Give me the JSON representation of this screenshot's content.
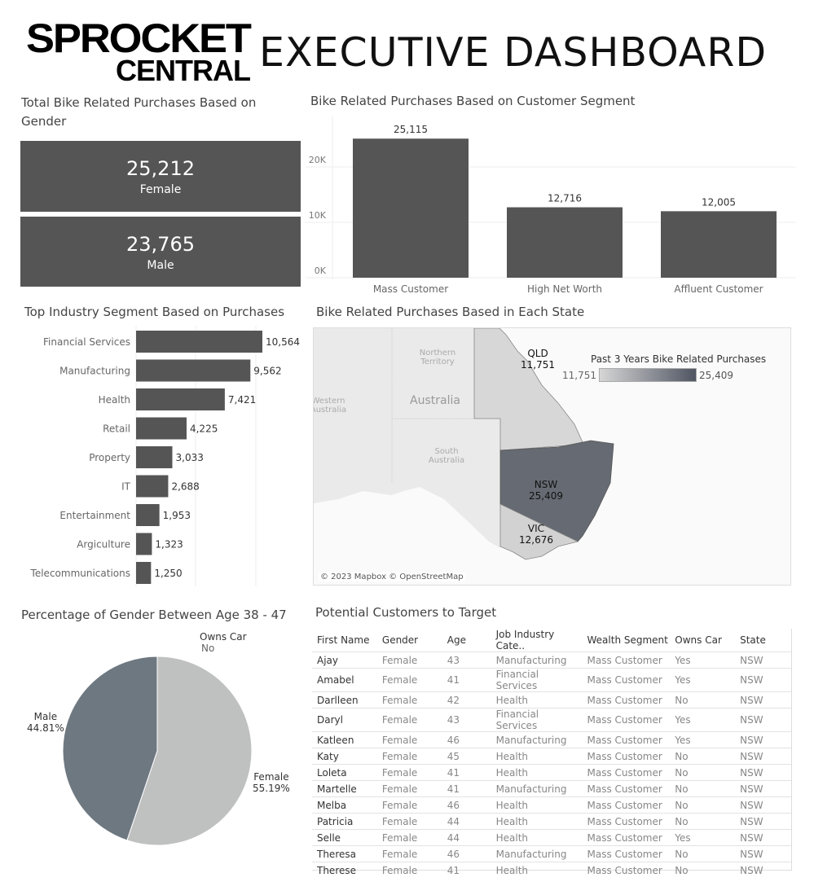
{
  "header": {
    "logo_line1": "SPROCKET",
    "logo_line2": "CENTRAL",
    "title": "EXECUTIVE DASHBOARD"
  },
  "gender_kpi": {
    "title": "Total Bike Related Purchases Based on Gender",
    "items": [
      {
        "value": "25,212",
        "label": "Female"
      },
      {
        "value": "23,765",
        "label": "Male"
      }
    ],
    "color": "#555555"
  },
  "chart_data": [
    {
      "type": "bar",
      "title": "Bike Related Purchases Based on Customer Segment",
      "categories": [
        "Mass Customer",
        "High Net Worth",
        "Affluent Customer"
      ],
      "values": [
        25115,
        12716,
        12005
      ],
      "value_labels": [
        "25,115",
        "12,716",
        "12,005"
      ],
      "yticks": [
        "0K",
        "10K",
        "20K"
      ],
      "ylim": [
        0,
        29000
      ],
      "color": "#555555",
      "grid": true
    },
    {
      "type": "bar",
      "orientation": "horizontal",
      "title": "Top Industry Segment Based on Purchases",
      "categories": [
        "Financial Services",
        "Manufacturing",
        "Health",
        "Retail",
        "Property",
        "IT",
        "Entertainment",
        "Argiculture",
        "Telecommunications"
      ],
      "values": [
        10564,
        9562,
        7421,
        4225,
        3033,
        2688,
        1953,
        1323,
        1250
      ],
      "value_labels": [
        "10,564",
        "9,562",
        "7,421",
        "4,225",
        "3,033",
        "2,688",
        "1,953",
        "1,323",
        "1,250"
      ],
      "color": "#555555"
    },
    {
      "type": "pie",
      "title": "Percentage of Gender Between Age 38 - 47",
      "legend_title": "Owns Car",
      "legend_value": "No",
      "slices": [
        {
          "label": "Female",
          "value": 55.19,
          "text": "55.19%",
          "color": "#bfc0c0"
        },
        {
          "label": "Male",
          "value": 44.81,
          "text": "44.81%",
          "color": "#6e7880"
        }
      ]
    }
  ],
  "map": {
    "title": "Bike Related Purchases Based in Each State",
    "legend_title": "Past 3 Years Bike Related Purchases",
    "legend_min": "11,751",
    "legend_max": "25,409",
    "color_low": "#d6d6d6",
    "color_high": "#4f5562",
    "attribution": "© 2023 Mapbox © OpenStreetMap",
    "basemap_labels": {
      "nt": "Northern Territory",
      "wa": "Western Australia",
      "country": "Australia",
      "sa": "South Australia"
    },
    "states": [
      {
        "name": "QLD",
        "value": "11,751",
        "color": "#d7d7d7"
      },
      {
        "name": "NSW",
        "value": "25,409",
        "color": "#666b73"
      },
      {
        "name": "VIC",
        "value": "12,676",
        "color": "#d2d2d2"
      }
    ]
  },
  "table": {
    "title": "Potential Customers to Target",
    "columns": [
      "First Name",
      "Gender",
      "Age",
      "Job Industry Cate..",
      "Wealth Segment",
      "Owns Car",
      "State"
    ],
    "rows": [
      [
        "Ajay",
        "Female",
        "43",
        "Manufacturing",
        "Mass Customer",
        "Yes",
        "NSW"
      ],
      [
        "Amabel",
        "Female",
        "41",
        "Financial Services",
        "Mass Customer",
        "Yes",
        "NSW"
      ],
      [
        "Darlleen",
        "Female",
        "42",
        "Health",
        "Mass Customer",
        "No",
        "NSW"
      ],
      [
        "Daryl",
        "Female",
        "43",
        "Financial Services",
        "Mass Customer",
        "Yes",
        "NSW"
      ],
      [
        "Katleen",
        "Female",
        "46",
        "Manufacturing",
        "Mass Customer",
        "Yes",
        "NSW"
      ],
      [
        "Katy",
        "Female",
        "45",
        "Health",
        "Mass Customer",
        "No",
        "NSW"
      ],
      [
        "Loleta",
        "Female",
        "41",
        "Health",
        "Mass Customer",
        "No",
        "NSW"
      ],
      [
        "Martelle",
        "Female",
        "41",
        "Manufacturing",
        "Mass Customer",
        "No",
        "NSW"
      ],
      [
        "Melba",
        "Female",
        "46",
        "Health",
        "Mass Customer",
        "No",
        "NSW"
      ],
      [
        "Patricia",
        "Female",
        "44",
        "Health",
        "Mass Customer",
        "No",
        "NSW"
      ],
      [
        "Selle",
        "Female",
        "44",
        "Health",
        "Mass Customer",
        "Yes",
        "NSW"
      ],
      [
        "Theresa",
        "Female",
        "46",
        "Manufacturing",
        "Mass Customer",
        "No",
        "NSW"
      ],
      [
        "Therese",
        "Female",
        "41",
        "Health",
        "Mass Customer",
        "No",
        "NSW"
      ]
    ]
  }
}
